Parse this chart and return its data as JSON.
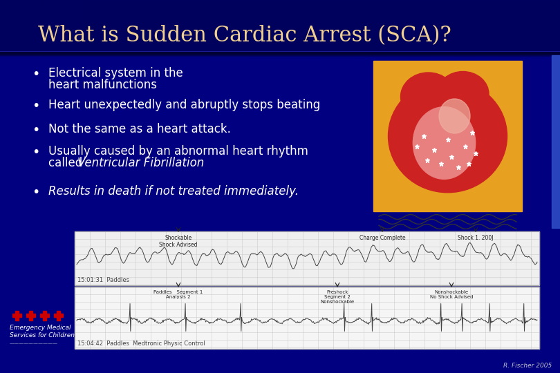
{
  "title": "What is Sudden Cardiac Arrest (SCA)?",
  "title_color": "#F0D090",
  "title_fontsize": 22,
  "bg_color": "#000080",
  "bullet_color": "#FFFFFF",
  "bullet_fontsize": 12,
  "ecg_bg": "#EFEFEF",
  "ecg2_bg": "#F8F8F8",
  "footer_color": "#CCCCCC",
  "footer_text": "R. Fischer 2005",
  "logo_text": "Emergency Medical\nServices for Children",
  "logo_color": "#CC0000",
  "heart_bg": "#E8A020",
  "heart_outer": "#CC2222",
  "heart_inner": "#E88080",
  "heart_light": "#EEB0A0"
}
